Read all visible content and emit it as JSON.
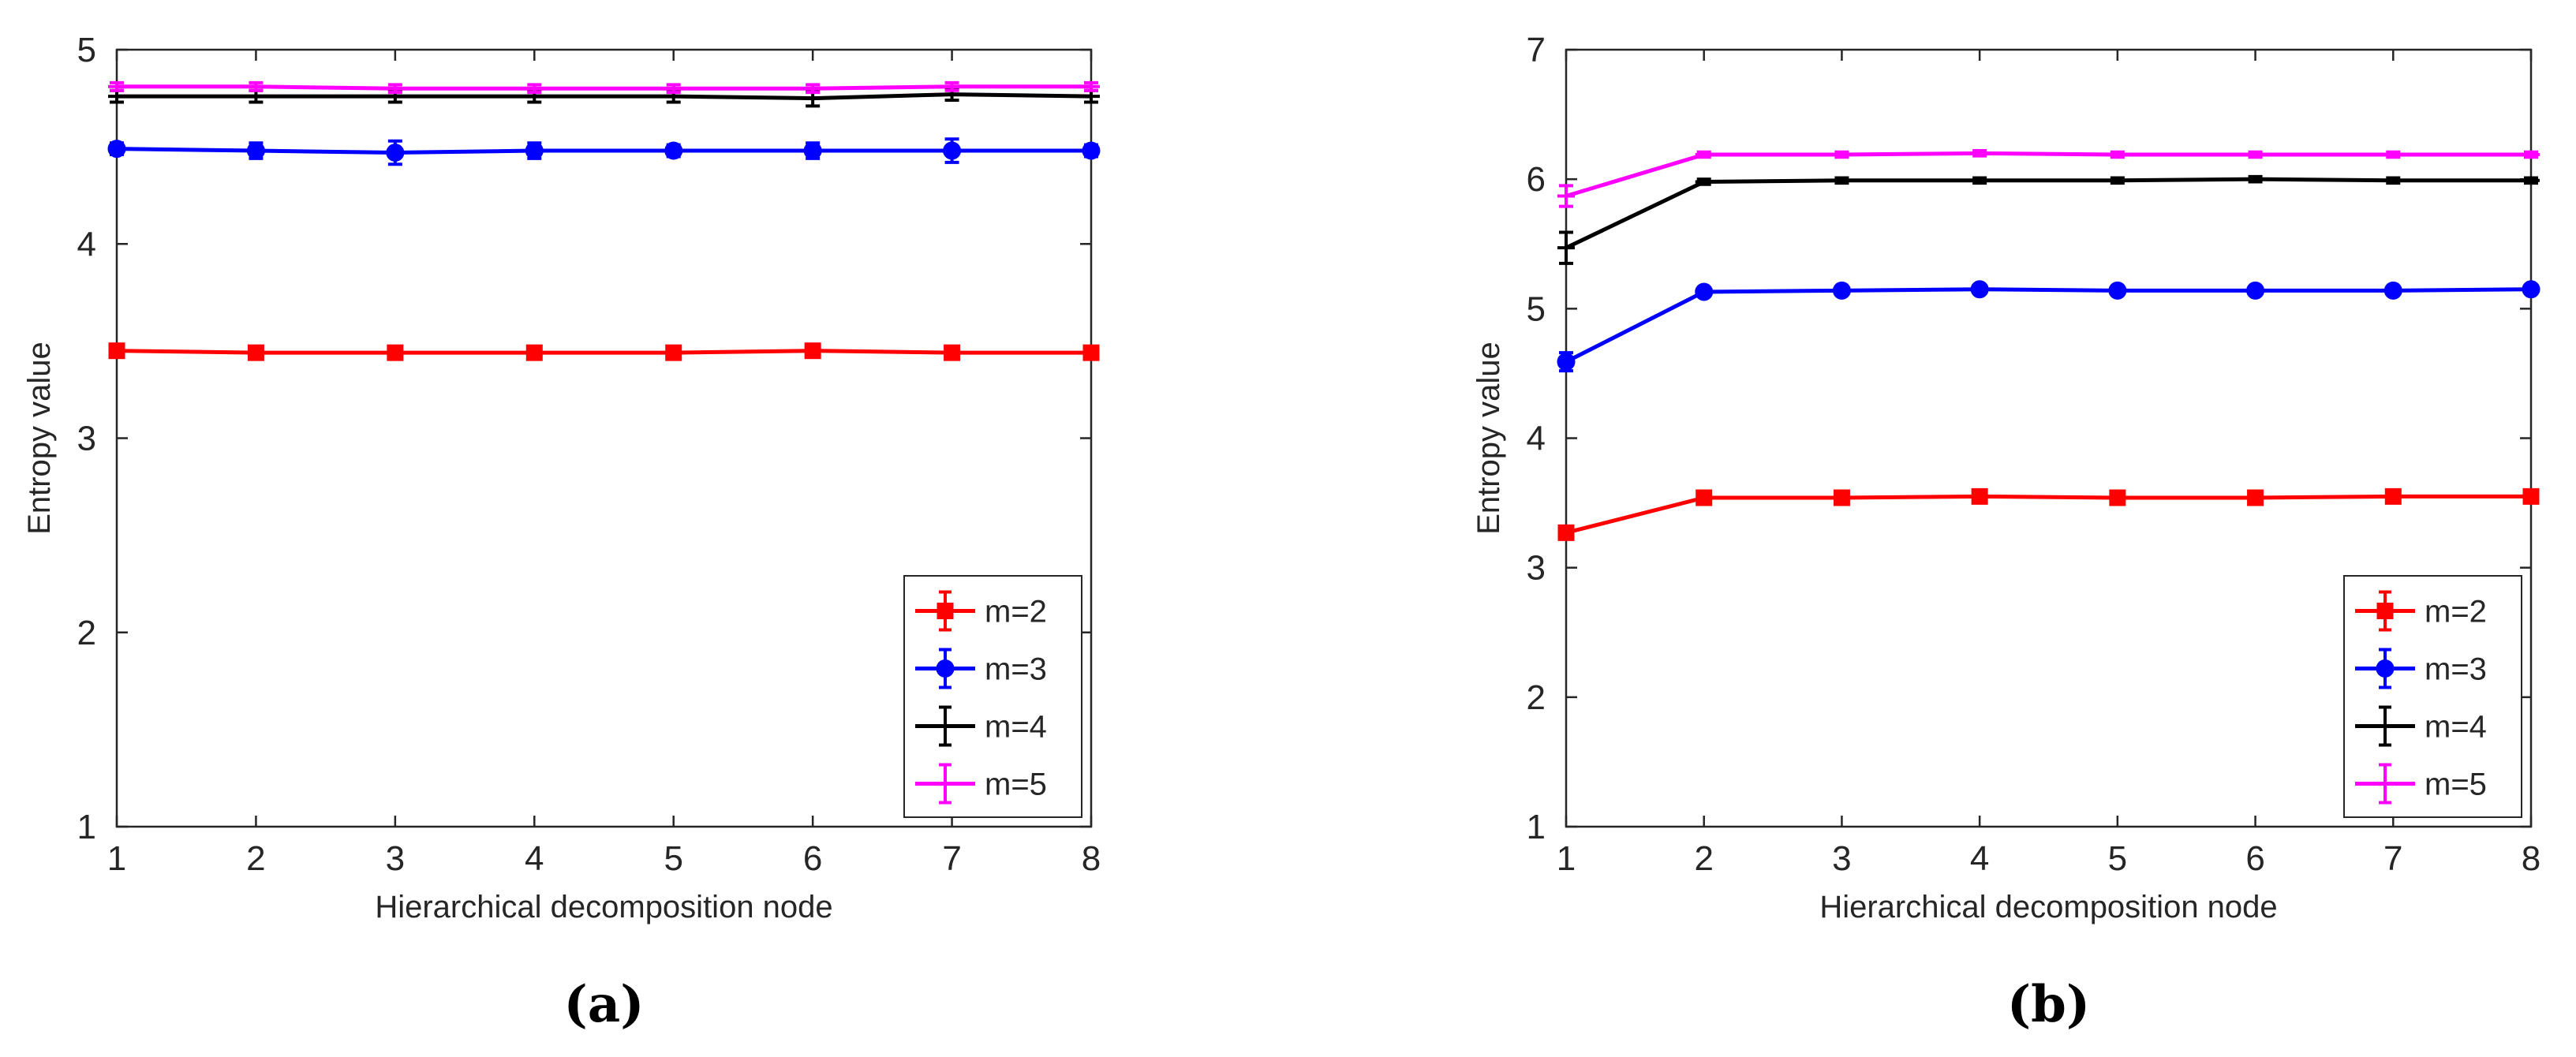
{
  "chart_data": [
    {
      "type": "line",
      "panel_label": "(a)",
      "xlabel": "Hierarchical decomposition node",
      "ylabel": "Entropy value",
      "x": [
        1,
        2,
        3,
        4,
        5,
        6,
        7,
        8
      ],
      "xlim": [
        1,
        8
      ],
      "ylim": [
        1,
        5
      ],
      "xticks": [
        "1",
        "2",
        "3",
        "4",
        "5",
        "6",
        "7",
        "8"
      ],
      "yticks": [
        "1",
        "2",
        "3",
        "4",
        "5"
      ],
      "legend_position": "bottom-right",
      "series": [
        {
          "name": "m=2",
          "color": "#ff0000",
          "marker": "square",
          "values": [
            3.45,
            3.44,
            3.44,
            3.44,
            3.44,
            3.45,
            3.44,
            3.44
          ],
          "errors": [
            0.02,
            0.02,
            0.02,
            0.02,
            0.03,
            0.02,
            0.02,
            0.02
          ]
        },
        {
          "name": "m=3",
          "color": "#0000ff",
          "marker": "circle",
          "values": [
            4.49,
            4.48,
            4.47,
            4.48,
            4.48,
            4.48,
            4.48,
            4.48
          ],
          "errors": [
            0.03,
            0.04,
            0.06,
            0.04,
            0.03,
            0.04,
            0.06,
            0.03
          ]
        },
        {
          "name": "m=4",
          "color": "#000000",
          "marker": "errorbar",
          "values": [
            4.76,
            4.76,
            4.76,
            4.76,
            4.76,
            4.75,
            4.77,
            4.76
          ],
          "errors": [
            0.03,
            0.03,
            0.03,
            0.03,
            0.03,
            0.04,
            0.03,
            0.03
          ]
        },
        {
          "name": "m=5",
          "color": "#ff00ff",
          "marker": "errorbar",
          "values": [
            4.81,
            4.81,
            4.8,
            4.8,
            4.8,
            4.8,
            4.81,
            4.81
          ],
          "errors": [
            0.02,
            0.02,
            0.02,
            0.02,
            0.02,
            0.02,
            0.02,
            0.02
          ]
        }
      ]
    },
    {
      "type": "line",
      "panel_label": "(b)",
      "xlabel": "Hierarchical decomposition node",
      "ylabel": "Entropy value",
      "x": [
        1,
        2,
        3,
        4,
        5,
        6,
        7,
        8
      ],
      "xlim": [
        1,
        8
      ],
      "ylim": [
        1,
        7
      ],
      "xticks": [
        "1",
        "2",
        "3",
        "4",
        "5",
        "6",
        "7",
        "8"
      ],
      "yticks": [
        "1",
        "2",
        "3",
        "4",
        "5",
        "6",
        "7"
      ],
      "legend_position": "bottom-right",
      "series": [
        {
          "name": "m=2",
          "color": "#ff0000",
          "marker": "square",
          "values": [
            3.27,
            3.54,
            3.54,
            3.55,
            3.54,
            3.54,
            3.55,
            3.55
          ],
          "errors": [
            0.03,
            0.02,
            0.02,
            0.02,
            0.02,
            0.02,
            0.02,
            0.02
          ]
        },
        {
          "name": "m=3",
          "color": "#0000ff",
          "marker": "circle",
          "values": [
            4.59,
            5.13,
            5.14,
            5.15,
            5.14,
            5.14,
            5.14,
            5.15
          ],
          "errors": [
            0.07,
            0.02,
            0.02,
            0.02,
            0.02,
            0.02,
            0.02,
            0.02
          ]
        },
        {
          "name": "m=4",
          "color": "#000000",
          "marker": "errorbar",
          "values": [
            5.47,
            5.98,
            5.99,
            5.99,
            5.99,
            6.0,
            5.99,
            5.99
          ],
          "errors": [
            0.12,
            0.02,
            0.02,
            0.02,
            0.02,
            0.02,
            0.02,
            0.02
          ]
        },
        {
          "name": "m=5",
          "color": "#ff00ff",
          "marker": "errorbar",
          "values": [
            5.87,
            6.19,
            6.19,
            6.2,
            6.19,
            6.19,
            6.19,
            6.19
          ],
          "errors": [
            0.08,
            0.02,
            0.02,
            0.02,
            0.02,
            0.02,
            0.02,
            0.02
          ]
        }
      ]
    }
  ]
}
